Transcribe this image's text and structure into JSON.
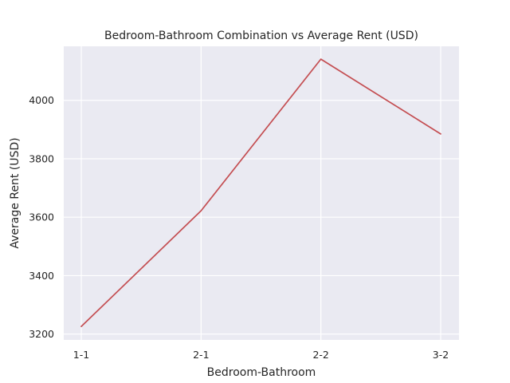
{
  "chart_data": {
    "type": "line",
    "title": "Bedroom-Bathroom Combination vs Average Rent (USD)",
    "xlabel": "Bedroom-Bathroom",
    "ylabel": "Average Rent (USD)",
    "categories": [
      "1-1",
      "2-1",
      "2-2",
      "3-2"
    ],
    "series": [
      {
        "values": [
          3226,
          3622,
          4141,
          3885
        ],
        "color": "#c44e52"
      }
    ],
    "yticks": [
      3200,
      3400,
      3600,
      3800,
      4000
    ],
    "ylim": [
      3180,
      4185
    ],
    "grid": true,
    "background": "#eaeaf2"
  }
}
